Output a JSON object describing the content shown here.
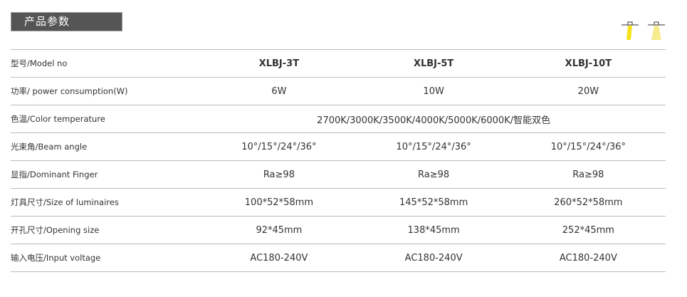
{
  "header": {
    "title": "产品参数"
  },
  "icons": [
    {
      "name": "spotlight-narrow-icon",
      "color": "#f5e21c"
    },
    {
      "name": "spotlight-wide-icon",
      "color": "#f7ec8c"
    }
  ],
  "table": {
    "models": [
      "XLBJ-3T",
      "XLBJ-5T",
      "XLBJ-10T"
    ],
    "model_label": "型号/Model no",
    "rows": [
      {
        "label": "功率/ power consumption(W)",
        "values": [
          "6W",
          "10W",
          "20W"
        ]
      },
      {
        "label": "色温/Color temperature",
        "merged": "2700K/3000K/3500K/4000K/5000K/6000K/智能双色"
      },
      {
        "label": "光束角/Beam angle",
        "values": [
          "10°/15°/24°/36°",
          "10°/15°/24°/36°",
          "10°/15°/24°/36°"
        ]
      },
      {
        "label": "显指/Dominant Finger",
        "values": [
          "Ra≥98",
          "Ra≥98",
          "Ra≥98"
        ]
      },
      {
        "label": "灯具尺寸/Size of luminaires",
        "values": [
          "100*52*58mm",
          "145*52*58mm",
          "260*52*58mm"
        ]
      },
      {
        "label": "开孔尺寸/Opening size",
        "values": [
          "92*45mm",
          "138*45mm",
          "252*45mm"
        ]
      },
      {
        "label": "输入电压/Input voltage",
        "values": [
          "AC180-240V",
          "AC180-240V",
          "AC180-240V"
        ]
      }
    ]
  }
}
